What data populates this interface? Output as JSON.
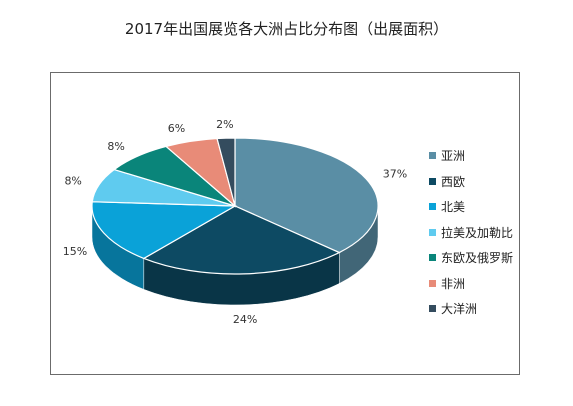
{
  "chart_data": {
    "type": "pie",
    "title": "2017年出国展览各大洲占比分布图（出展面积）",
    "categories": [
      "亚洲",
      "西欧",
      "北美",
      "拉美及加勒比",
      "东欧及俄罗斯",
      "非洲",
      "大洋洲"
    ],
    "values": [
      37,
      24,
      15,
      8,
      8,
      6,
      2
    ],
    "labels": [
      "37%",
      "24%",
      "15%",
      "8%",
      "8%",
      "6%",
      "2%"
    ],
    "colors": [
      "#5a8ea5",
      "#0d4a63",
      "#0aa2d8",
      "#5fcbef",
      "#0a857a",
      "#e88b78",
      "#344c5e"
    ],
    "legend_position": "right",
    "style": "3d"
  }
}
